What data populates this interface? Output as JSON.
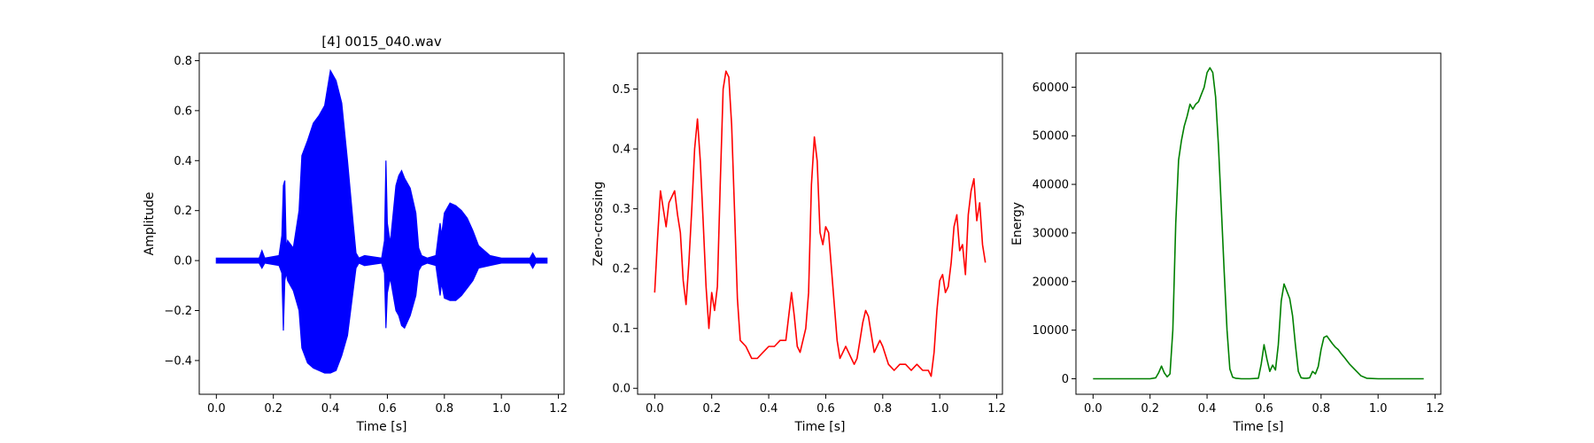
{
  "chart_data": [
    {
      "type": "line",
      "title": "[4] 0015_040.wav",
      "xlabel": "Time [s]",
      "ylabel": "Amplitude",
      "xlim": [
        -0.06,
        1.22
      ],
      "ylim": [
        -0.535,
        0.83
      ],
      "xticks": [
        "0.0",
        "0.2",
        "0.4",
        "0.6",
        "0.8",
        "1.0",
        "1.2"
      ],
      "yticks": [
        "−0.4",
        "−0.2",
        "0.0",
        "0.2",
        "0.4",
        "0.6",
        "0.8"
      ],
      "color": "#0000ff",
      "envelope": {
        "x": [
          0.0,
          0.15,
          0.16,
          0.17,
          0.22,
          0.23,
          0.235,
          0.24,
          0.245,
          0.25,
          0.27,
          0.29,
          0.3,
          0.32,
          0.34,
          0.36,
          0.38,
          0.4,
          0.42,
          0.44,
          0.46,
          0.48,
          0.49,
          0.5,
          0.52,
          0.58,
          0.59,
          0.595,
          0.6,
          0.61,
          0.63,
          0.64,
          0.65,
          0.66,
          0.68,
          0.7,
          0.71,
          0.72,
          0.74,
          0.77,
          0.78,
          0.785,
          0.79,
          0.8,
          0.82,
          0.84,
          0.86,
          0.88,
          0.9,
          0.92,
          0.96,
          1.0,
          1.1,
          1.11,
          1.12,
          1.16
        ],
        "upper": [
          0.01,
          0.01,
          0.04,
          0.01,
          0.02,
          0.1,
          0.3,
          0.32,
          0.05,
          0.08,
          0.05,
          0.2,
          0.42,
          0.48,
          0.55,
          0.58,
          0.62,
          0.76,
          0.72,
          0.63,
          0.4,
          0.15,
          0.03,
          0.01,
          0.02,
          0.01,
          0.08,
          0.4,
          0.15,
          0.07,
          0.3,
          0.34,
          0.36,
          0.33,
          0.29,
          0.19,
          0.05,
          0.02,
          0.01,
          0.02,
          0.11,
          0.15,
          0.1,
          0.19,
          0.23,
          0.22,
          0.2,
          0.17,
          0.12,
          0.06,
          0.02,
          0.01,
          0.01,
          0.03,
          0.01,
          0.01
        ],
        "lower": [
          -0.01,
          -0.01,
          -0.03,
          -0.01,
          -0.02,
          -0.05,
          -0.28,
          -0.08,
          -0.05,
          -0.08,
          -0.12,
          -0.2,
          -0.35,
          -0.41,
          -0.43,
          -0.44,
          -0.45,
          -0.45,
          -0.44,
          -0.38,
          -0.3,
          -0.12,
          -0.03,
          -0.01,
          -0.02,
          -0.01,
          -0.05,
          -0.27,
          -0.13,
          -0.07,
          -0.2,
          -0.22,
          -0.26,
          -0.27,
          -0.22,
          -0.14,
          -0.04,
          -0.02,
          -0.01,
          -0.02,
          -0.1,
          -0.14,
          -0.09,
          -0.15,
          -0.16,
          -0.16,
          -0.14,
          -0.11,
          -0.08,
          -0.03,
          -0.02,
          -0.01,
          -0.01,
          -0.03,
          -0.01,
          -0.01
        ]
      }
    },
    {
      "type": "line",
      "title": "",
      "xlabel": "Time [s]",
      "ylabel": "Zero-crossing",
      "xlim": [
        -0.06,
        1.22
      ],
      "ylim": [
        -0.01,
        0.56
      ],
      "xticks": [
        "0.0",
        "0.2",
        "0.4",
        "0.6",
        "0.8",
        "1.0",
        "1.2"
      ],
      "yticks": [
        "0.0",
        "0.1",
        "0.2",
        "0.3",
        "0.4",
        "0.5"
      ],
      "color": "#ff0000",
      "x": [
        0.0,
        0.01,
        0.02,
        0.03,
        0.04,
        0.05,
        0.06,
        0.07,
        0.08,
        0.09,
        0.1,
        0.11,
        0.12,
        0.13,
        0.14,
        0.15,
        0.16,
        0.17,
        0.18,
        0.19,
        0.2,
        0.21,
        0.22,
        0.23,
        0.24,
        0.25,
        0.26,
        0.27,
        0.28,
        0.29,
        0.3,
        0.32,
        0.34,
        0.36,
        0.38,
        0.4,
        0.42,
        0.44,
        0.46,
        0.48,
        0.49,
        0.5,
        0.51,
        0.52,
        0.53,
        0.54,
        0.55,
        0.56,
        0.57,
        0.58,
        0.59,
        0.6,
        0.61,
        0.62,
        0.63,
        0.64,
        0.65,
        0.66,
        0.67,
        0.68,
        0.69,
        0.7,
        0.71,
        0.72,
        0.73,
        0.74,
        0.75,
        0.76,
        0.77,
        0.78,
        0.79,
        0.8,
        0.82,
        0.84,
        0.86,
        0.88,
        0.9,
        0.92,
        0.94,
        0.96,
        0.97,
        0.98,
        0.99,
        1.0,
        1.01,
        1.02,
        1.03,
        1.04,
        1.05,
        1.06,
        1.07,
        1.08,
        1.09,
        1.1,
        1.11,
        1.12,
        1.13,
        1.14,
        1.15,
        1.16
      ],
      "y": [
        0.16,
        0.25,
        0.33,
        0.3,
        0.27,
        0.31,
        0.32,
        0.33,
        0.29,
        0.26,
        0.18,
        0.14,
        0.21,
        0.3,
        0.4,
        0.45,
        0.38,
        0.28,
        0.17,
        0.1,
        0.16,
        0.13,
        0.17,
        0.34,
        0.5,
        0.53,
        0.52,
        0.44,
        0.3,
        0.15,
        0.08,
        0.07,
        0.05,
        0.05,
        0.06,
        0.07,
        0.07,
        0.08,
        0.08,
        0.16,
        0.12,
        0.07,
        0.06,
        0.08,
        0.1,
        0.16,
        0.34,
        0.42,
        0.38,
        0.26,
        0.24,
        0.27,
        0.26,
        0.2,
        0.14,
        0.08,
        0.05,
        0.06,
        0.07,
        0.06,
        0.05,
        0.04,
        0.05,
        0.08,
        0.11,
        0.13,
        0.12,
        0.09,
        0.06,
        0.07,
        0.08,
        0.07,
        0.04,
        0.03,
        0.04,
        0.04,
        0.03,
        0.04,
        0.03,
        0.03,
        0.02,
        0.06,
        0.13,
        0.18,
        0.19,
        0.16,
        0.17,
        0.21,
        0.27,
        0.29,
        0.23,
        0.24,
        0.19,
        0.29,
        0.33,
        0.35,
        0.28,
        0.31,
        0.24,
        0.21
      ]
    },
    {
      "type": "line",
      "title": "",
      "xlabel": "Time [s]",
      "ylabel": "Energy",
      "xlim": [
        -0.06,
        1.22
      ],
      "ylim": [
        -3200,
        67000
      ],
      "xticks": [
        "0.0",
        "0.2",
        "0.4",
        "0.6",
        "0.8",
        "1.0",
        "1.2"
      ],
      "yticks": [
        "0",
        "10000",
        "20000",
        "30000",
        "40000",
        "50000",
        "60000"
      ],
      "color": "#008000",
      "x": [
        0.0,
        0.2,
        0.22,
        0.23,
        0.24,
        0.25,
        0.26,
        0.27,
        0.28,
        0.29,
        0.3,
        0.31,
        0.32,
        0.33,
        0.34,
        0.35,
        0.36,
        0.37,
        0.38,
        0.39,
        0.4,
        0.41,
        0.42,
        0.43,
        0.44,
        0.45,
        0.46,
        0.47,
        0.48,
        0.49,
        0.5,
        0.52,
        0.55,
        0.58,
        0.59,
        0.6,
        0.61,
        0.62,
        0.63,
        0.64,
        0.65,
        0.66,
        0.67,
        0.68,
        0.69,
        0.7,
        0.71,
        0.72,
        0.73,
        0.74,
        0.75,
        0.76,
        0.77,
        0.78,
        0.79,
        0.8,
        0.81,
        0.82,
        0.83,
        0.84,
        0.85,
        0.86,
        0.87,
        0.88,
        0.9,
        0.92,
        0.94,
        0.96,
        1.0,
        1.16
      ],
      "y": [
        0,
        0,
        200,
        1200,
        2600,
        1200,
        400,
        1000,
        10000,
        32000,
        45000,
        49000,
        52000,
        54000,
        56500,
        55500,
        56500,
        57000,
        58500,
        60000,
        63000,
        64000,
        63000,
        58000,
        48000,
        35000,
        22000,
        10000,
        2000,
        300,
        100,
        0,
        0,
        100,
        3000,
        7000,
        4000,
        1500,
        2800,
        1800,
        7000,
        16000,
        19500,
        18000,
        16500,
        13000,
        7000,
        1500,
        200,
        100,
        100,
        200,
        1500,
        1000,
        2500,
        6000,
        8500,
        8800,
        8000,
        7200,
        6500,
        6000,
        5200,
        4500,
        3000,
        1800,
        600,
        100,
        0,
        0
      ]
    }
  ]
}
